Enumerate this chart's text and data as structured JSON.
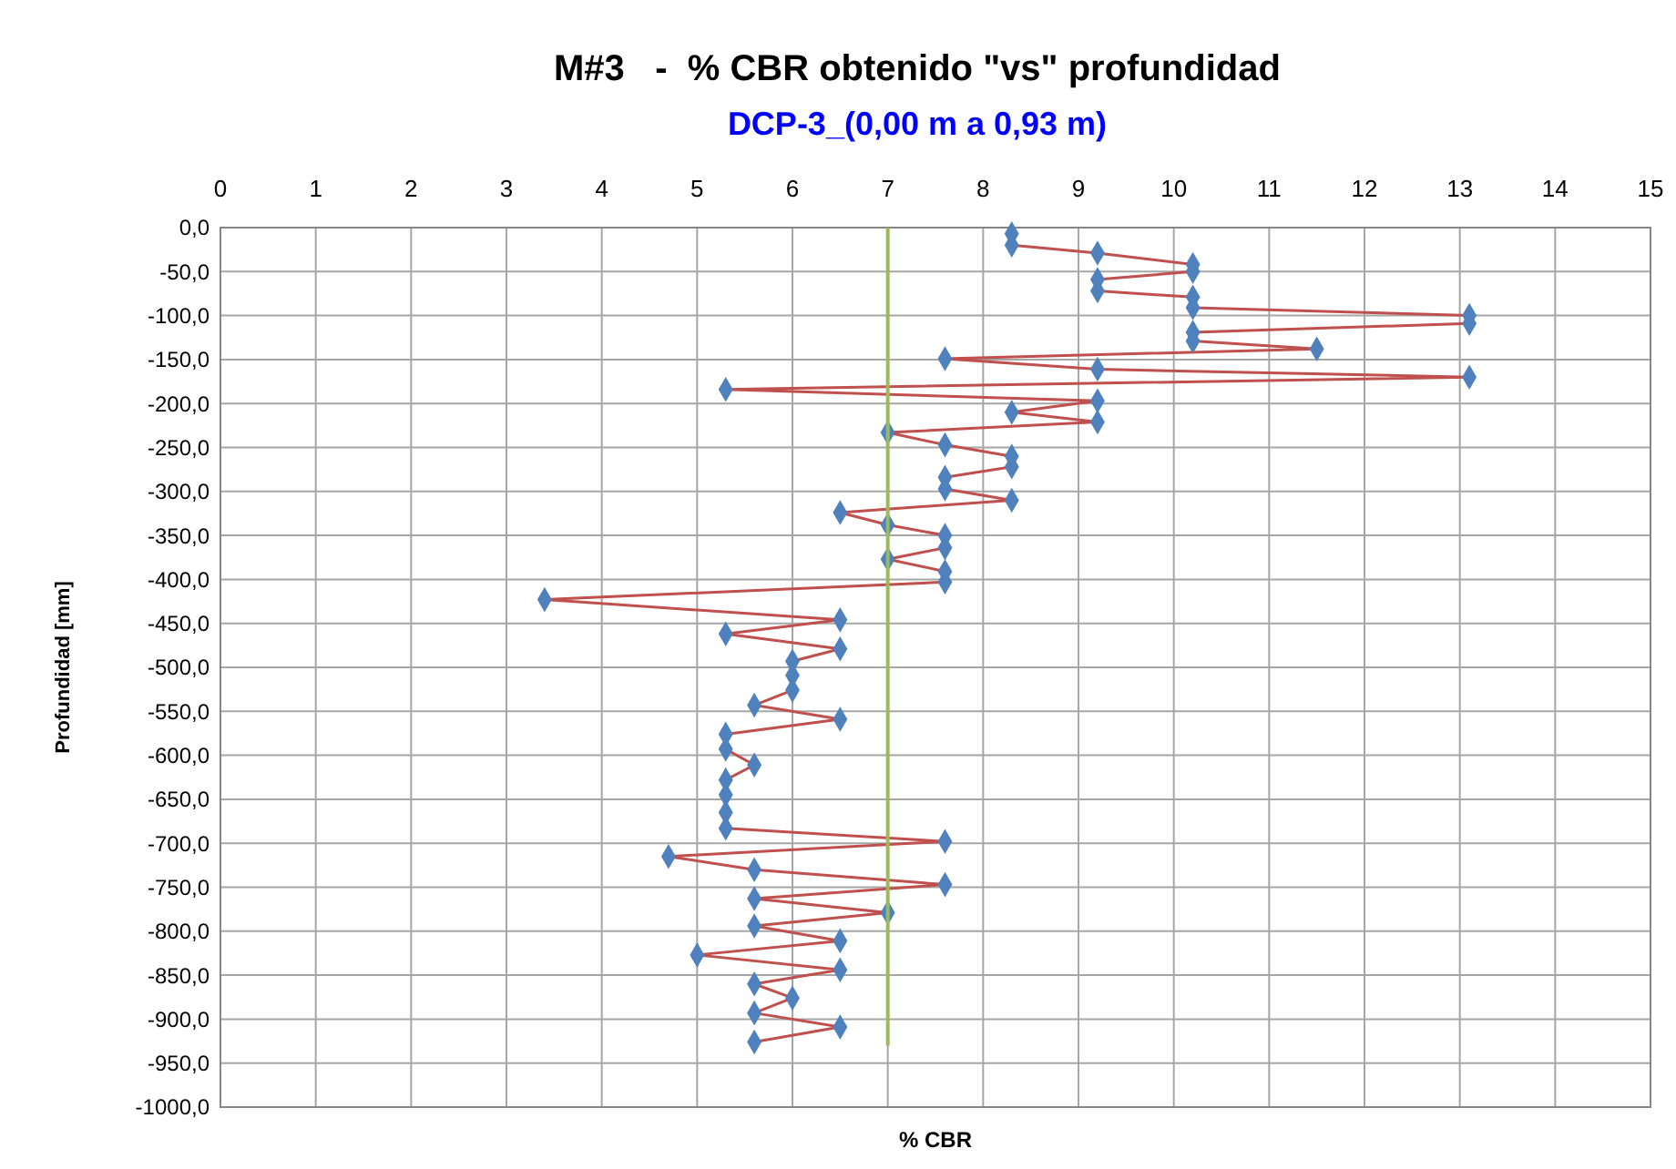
{
  "chart_data": {
    "type": "line",
    "title": "M#3   -  % CBR obtenido \"vs\" profundidad",
    "subtitle": "DCP-3_(0,00 m a 0,93 m)",
    "xlabel": "% CBR",
    "ylabel": "Profundidad [mm]",
    "xlim": [
      0,
      15
    ],
    "xticks": [
      0,
      1,
      2,
      3,
      4,
      5,
      6,
      7,
      8,
      9,
      10,
      11,
      12,
      13,
      14,
      15
    ],
    "ylim": [
      -1000,
      0
    ],
    "yticks": [
      {
        "value": 0,
        "label": "0,0"
      },
      {
        "value": -50,
        "label": "-50,0"
      },
      {
        "value": -100,
        "label": "-100,0"
      },
      {
        "value": -150,
        "label": "-150,0"
      },
      {
        "value": -200,
        "label": "-200,0"
      },
      {
        "value": -250,
        "label": "-250,0"
      },
      {
        "value": -300,
        "label": "-300,0"
      },
      {
        "value": -350,
        "label": "-350,0"
      },
      {
        "value": -400,
        "label": "-400,0"
      },
      {
        "value": -450,
        "label": "-450,0"
      },
      {
        "value": -500,
        "label": "-500,0"
      },
      {
        "value": -550,
        "label": "-550,0"
      },
      {
        "value": -600,
        "label": "-600,0"
      },
      {
        "value": -650,
        "label": "-650,0"
      },
      {
        "value": -700,
        "label": "-700,0"
      },
      {
        "value": -750,
        "label": "-750,0"
      },
      {
        "value": -800,
        "label": "-800,0"
      },
      {
        "value": -850,
        "label": "-850,0"
      },
      {
        "value": -900,
        "label": "-900,0"
      },
      {
        "value": -950,
        "label": "-950,0"
      },
      {
        "value": -1000,
        "label": "-1000,0"
      }
    ],
    "grid": true,
    "series": [
      {
        "color": "#c0504d",
        "marker": "none",
        "x": [
          8.3,
          8.3,
          9.2,
          10.2,
          10.2,
          9.2,
          9.2,
          10.2,
          10.2,
          13.1,
          13.1,
          10.2,
          10.2,
          11.5,
          7.6,
          9.2,
          13.1,
          5.3,
          9.2,
          8.3,
          9.2,
          7.0,
          7.6,
          8.3,
          8.3,
          7.6,
          7.6,
          8.3,
          6.5,
          7.0,
          7.6,
          7.6,
          7.0,
          7.6,
          7.6,
          3.4,
          6.5,
          5.3,
          6.5,
          6.0,
          6.0,
          6.0,
          5.6,
          6.5,
          5.3,
          5.3,
          5.6,
          5.3,
          5.3,
          5.3,
          5.3,
          7.6,
          4.7,
          5.6,
          7.6,
          5.6,
          7.0,
          5.6,
          6.5,
          5.0,
          6.5,
          5.6,
          6.0,
          5.6,
          6.5,
          5.6
        ],
        "values": [
          -7,
          -20,
          -29,
          -42,
          -50,
          -59,
          -72,
          -79,
          -91,
          -100,
          -109,
          -119,
          -129,
          -138,
          -149,
          -161,
          -170,
          -184,
          -197,
          -210,
          -221,
          -233,
          -247,
          -260,
          -272,
          -284,
          -297,
          -310,
          -324,
          -338,
          -350,
          -364,
          -377,
          -391,
          -403,
          -423,
          -446,
          -462,
          -479,
          -493,
          -509,
          -526,
          -543,
          -559,
          -576,
          -593,
          -611,
          -628,
          -645,
          -665,
          -683,
          -698,
          -715,
          -730,
          -747,
          -763,
          -779,
          -794,
          -811,
          -827,
          -844,
          -860,
          -876,
          -893,
          -909,
          -926
        ]
      },
      {
        "type": "scatter",
        "color": "#4f81bd",
        "marker": "diamond",
        "x": [
          8.3,
          8.3,
          9.2,
          10.2,
          10.2,
          9.2,
          9.2,
          10.2,
          10.2,
          13.1,
          13.1,
          10.2,
          10.2,
          11.5,
          7.6,
          9.2,
          13.1,
          5.3,
          9.2,
          8.3,
          9.2,
          7.0,
          7.6,
          8.3,
          8.3,
          7.6,
          7.6,
          8.3,
          6.5,
          7.0,
          7.6,
          7.6,
          7.0,
          7.6,
          7.6,
          3.4,
          6.5,
          5.3,
          6.5,
          6.0,
          6.0,
          6.0,
          5.6,
          6.5,
          5.3,
          5.3,
          5.6,
          5.3,
          5.3,
          5.3,
          5.3,
          7.6,
          4.7,
          5.6,
          7.6,
          5.6,
          7.0,
          5.6,
          6.5,
          5.0,
          6.5,
          5.6,
          6.0,
          5.6,
          6.5,
          5.6
        ],
        "values": [
          -7,
          -20,
          -29,
          -42,
          -50,
          -59,
          -72,
          -79,
          -91,
          -100,
          -109,
          -119,
          -129,
          -138,
          -149,
          -161,
          -170,
          -184,
          -197,
          -210,
          -221,
          -233,
          -247,
          -260,
          -272,
          -284,
          -297,
          -310,
          -324,
          -338,
          -350,
          -364,
          -377,
          -391,
          -403,
          -423,
          -446,
          -462,
          -479,
          -493,
          -509,
          -526,
          -543,
          -559,
          -576,
          -593,
          -611,
          -628,
          -645,
          -665,
          -683,
          -698,
          -715,
          -730,
          -747,
          -763,
          -779,
          -794,
          -811,
          -827,
          -844,
          -860,
          -876,
          -893,
          -909,
          -926
        ]
      },
      {
        "color": "#9bbb59",
        "marker": "none",
        "x": [
          7,
          7
        ],
        "values": [
          0,
          -930
        ]
      }
    ]
  }
}
